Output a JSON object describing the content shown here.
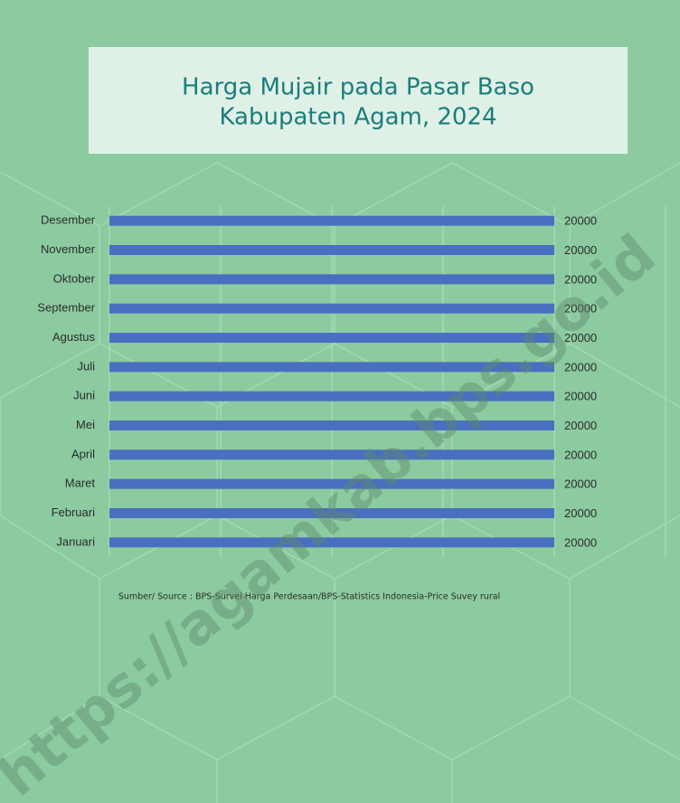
{
  "chart_data": {
    "type": "bar",
    "orientation": "horizontal",
    "title": [
      "Harga Mujair pada Pasar Baso",
      "Kabupaten Agam, 2024"
    ],
    "categories": [
      "Januari",
      "Februari",
      "Maret",
      "April",
      "Mei",
      "Juni",
      "Juli",
      "Agustus",
      "September",
      "Oktober",
      "November",
      "Desember"
    ],
    "values": [
      20000,
      20000,
      20000,
      20000,
      20000,
      20000,
      20000,
      20000,
      20000,
      20000,
      20000,
      20000
    ],
    "color": "#4a6fc0",
    "xlim": [
      0,
      25000
    ],
    "xticks": [
      0,
      5000,
      10000,
      15000,
      20000,
      25000
    ],
    "grid": true,
    "source": "Sumber/ Source : BPS-Survei Harga Perdesaan/BPS-Statistics Indonesia-Price Suvey rural",
    "watermark": "https://agamkab.bps.go.id"
  }
}
